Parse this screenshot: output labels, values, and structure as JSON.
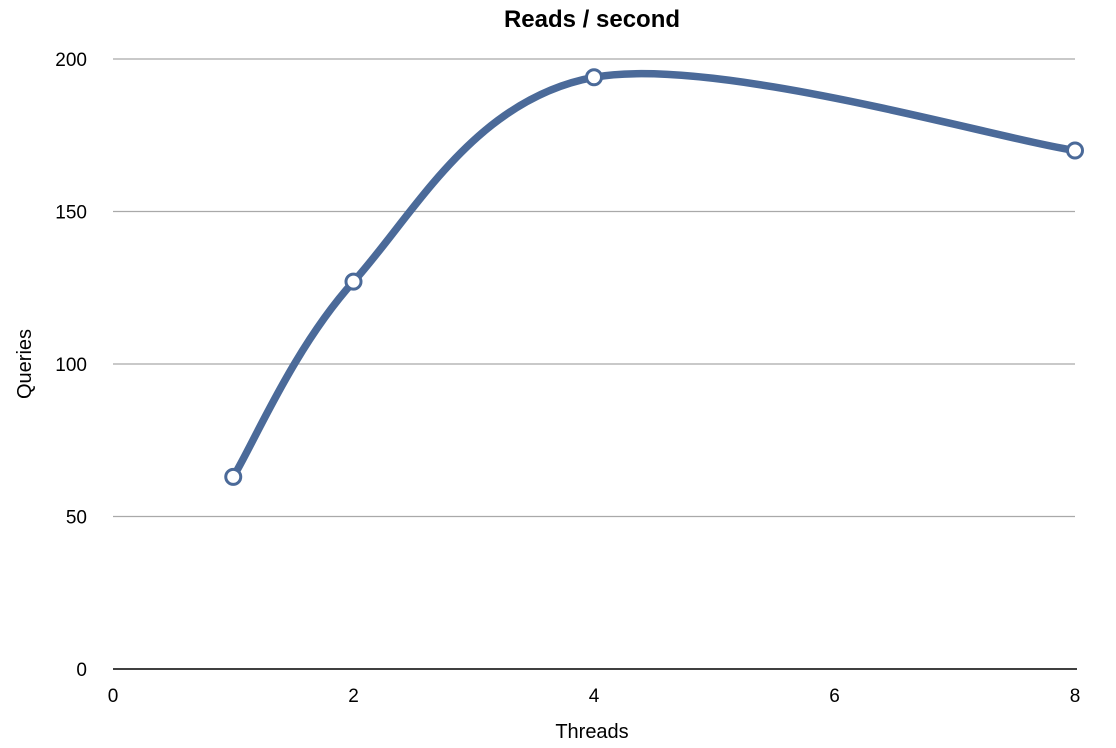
{
  "chart_data": {
    "type": "line",
    "title": "Reads / second",
    "xlabel": "Threads",
    "ylabel": "Queries",
    "xlim": [
      0,
      8
    ],
    "ylim": [
      0,
      200
    ],
    "x_ticks": [
      0,
      2,
      4,
      6,
      8
    ],
    "y_ticks": [
      0,
      50,
      100,
      150,
      200
    ],
    "grid": "horizontal",
    "smooth": true,
    "legend": "none",
    "series": [
      {
        "x": [
          1,
          2,
          4,
          8
        ],
        "values": [
          63,
          127,
          194,
          170
        ],
        "color": "#4b6a99"
      }
    ]
  }
}
